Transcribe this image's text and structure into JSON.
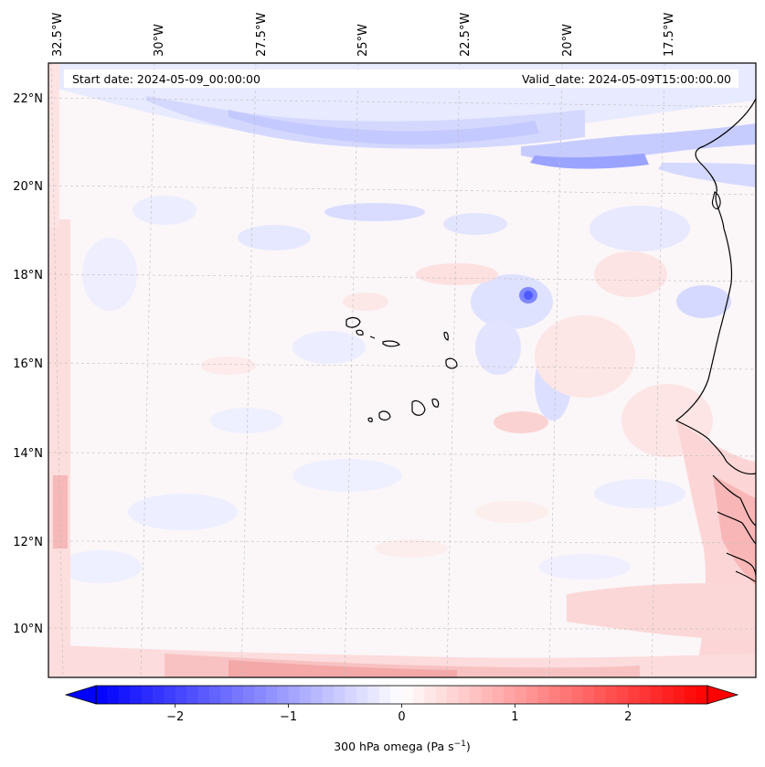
{
  "header": {
    "start_date": "Start date: 2024-05-09_00:00:00",
    "valid_date": "Valid_date: 2024-05-09T15:00:00.00"
  },
  "map": {
    "lon_labels": [
      "32.5°W",
      "30°W",
      "27.5°W",
      "25°W",
      "22.5°W",
      "20°W",
      "17.5°W"
    ],
    "lat_labels": [
      "22°N",
      "20°N",
      "18°N",
      "16°N",
      "14°N",
      "12°N",
      "10°N"
    ]
  },
  "colorbar": {
    "ticks": [
      "−2",
      "−1",
      "0",
      "1",
      "2"
    ],
    "label_main": "300 hPa omega (Pa s",
    "label_exp": "−1",
    "label_close": ")",
    "vmin": -2.7,
    "vmax": 2.7,
    "neg_color": "#0000ff",
    "pos_color": "#ff0000"
  }
}
